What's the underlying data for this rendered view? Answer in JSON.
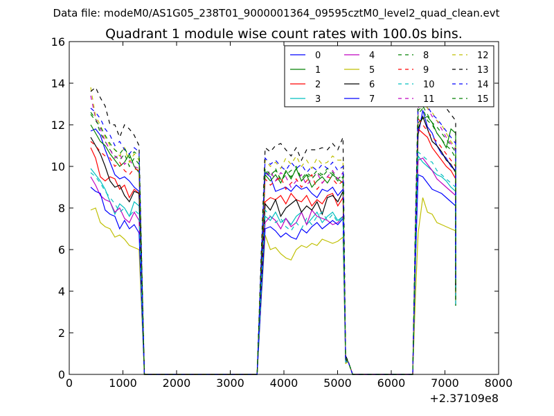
{
  "header": {
    "datafile": "Data file: modeM0/AS1G05_238T01_9000001364_09595cztM0_level2_quad_clean.evt"
  },
  "chart_data": {
    "type": "line",
    "title": "Quadrant 1 module wise count rates with 100.0s bins.",
    "xlabel": "",
    "ylabel": "",
    "x_offset_label": "+2.37109e8",
    "xlim": [
      0,
      8000
    ],
    "ylim": [
      0,
      16
    ],
    "xticks": [
      0,
      1000,
      2000,
      3000,
      4000,
      5000,
      6000,
      7000,
      8000
    ],
    "yticks": [
      0,
      2,
      4,
      6,
      8,
      10,
      12,
      14,
      16
    ],
    "grid": false,
    "legend_position": "top-right",
    "legend_ncol": 4,
    "segments": [
      {
        "x_start": 400,
        "x_end": 1300,
        "x_drop": 1400,
        "x_zero_start": 1400,
        "x_zero_end": 3500
      },
      {
        "x_start": 3650,
        "x_end": 5100,
        "x_rise": 3500
      },
      {
        "x_start": 6500,
        "x_end": 7200,
        "x_rise": 6400
      }
    ],
    "series": [
      {
        "name": "0",
        "color": "#0000ff",
        "dash": "solid",
        "seg1": [
          11.7,
          11.8,
          11.5,
          10.8,
          10.2,
          9.6,
          9.4,
          9.5,
          9.3,
          9.0,
          8.8
        ],
        "seg2": [
          9.7,
          9.5,
          8.8,
          8.9,
          9.0,
          8.8,
          9.1,
          8.9,
          9.0,
          8.7,
          8.5,
          8.9,
          8.8,
          9.0,
          8.6,
          8.9
        ],
        "seg3": [
          11.5,
          12.7,
          11.9,
          11.6,
          11.0,
          10.6,
          10.4,
          10.0,
          9.8
        ]
      },
      {
        "name": "1",
        "color": "#008000",
        "dash": "solid",
        "seg1": [
          12.0,
          11.6,
          11.2,
          11.0,
          10.6,
          10.3,
          10.0,
          10.2,
          10.6,
          10.0,
          9.7
        ],
        "seg2": [
          9.6,
          9.3,
          9.6,
          9.2,
          9.8,
          9.4,
          9.9,
          9.3,
          9.6,
          9.0,
          9.3,
          9.5,
          9.2,
          9.6,
          9.4,
          9.2
        ],
        "seg3": [
          12.1,
          12.3,
          12.4,
          12.1,
          11.6,
          11.3,
          10.9,
          11.8,
          11.6
        ]
      },
      {
        "name": "2",
        "color": "#ff0000",
        "dash": "solid",
        "seg1": [
          10.9,
          10.4,
          9.5,
          9.3,
          9.5,
          9.4,
          8.9,
          9.1,
          8.5,
          8.9,
          8.7
        ],
        "seg2": [
          8.3,
          8.5,
          8.4,
          8.6,
          8.2,
          8.7,
          8.4,
          8.3,
          8.6,
          8.1,
          8.4,
          8.2,
          8.6,
          8.7,
          8.1,
          8.5
        ],
        "seg3": [
          11.8,
          11.6,
          11.4,
          10.9,
          10.6,
          10.3,
          10.0,
          9.8,
          9.4
        ]
      },
      {
        "name": "3",
        "color": "#00bfbf",
        "dash": "solid",
        "seg1": [
          9.9,
          9.6,
          9.3,
          8.9,
          8.3,
          7.7,
          8.2,
          8.0,
          7.6,
          8.3,
          8.1
        ],
        "seg2": [
          7.6,
          7.4,
          7.8,
          7.3,
          7.5,
          7.2,
          7.6,
          7.8,
          7.2,
          7.5,
          7.8,
          7.3,
          7.6,
          7.8,
          7.4,
          7.6
        ],
        "seg3": [
          10.5,
          10.2,
          10.0,
          9.8,
          9.6,
          9.5,
          9.3,
          9.0,
          8.8
        ]
      },
      {
        "name": "4",
        "color": "#bf00bf",
        "dash": "solid",
        "seg1": [
          9.5,
          9.1,
          8.6,
          8.4,
          8.3,
          7.8,
          8.0,
          7.5,
          7.3,
          7.8,
          7.4
        ],
        "seg2": [
          7.3,
          7.6,
          7.4,
          7.0,
          7.5,
          7.1,
          7.3,
          7.8,
          7.2,
          7.9,
          7.6,
          7.5,
          7.4,
          7.2,
          7.3,
          7.6
        ],
        "seg3": [
          10.3,
          10.4,
          10.1,
          9.8,
          9.4,
          9.2,
          9.0,
          8.8,
          8.6
        ]
      },
      {
        "name": "5",
        "color": "#bfbf00",
        "dash": "solid",
        "seg1": [
          7.9,
          8.0,
          7.3,
          7.1,
          7.0,
          6.6,
          6.7,
          6.5,
          6.2,
          6.1,
          6.0
        ],
        "seg2": [
          6.7,
          6.0,
          6.1,
          5.8,
          5.6,
          5.5,
          6.0,
          6.2,
          6.1,
          6.3,
          6.2,
          6.5,
          6.4,
          6.3,
          6.4,
          6.6
        ],
        "seg3": [
          6.8,
          8.5,
          7.8,
          7.7,
          7.3,
          7.2,
          7.1,
          7.0,
          6.9
        ]
      },
      {
        "name": "6",
        "color": "#000000",
        "dash": "solid",
        "seg1": [
          11.4,
          11.0,
          10.6,
          10.0,
          9.3,
          9.0,
          9.1,
          8.6,
          8.3,
          8.8,
          8.7
        ],
        "seg2": [
          8.2,
          7.9,
          8.4,
          7.6,
          8.0,
          8.2,
          8.4,
          7.8,
          8.1,
          7.9,
          8.3,
          7.7,
          8.5,
          8.6,
          8.3,
          8.8
        ],
        "seg3": [
          11.8,
          12.4,
          11.8,
          11.2,
          11.0,
          10.7,
          10.3,
          10.1,
          9.7
        ]
      },
      {
        "name": "7",
        "color": "#0000ff",
        "dash": "solid",
        "seg1": [
          9.0,
          8.8,
          8.7,
          7.9,
          7.7,
          7.6,
          7.0,
          7.4,
          7.0,
          7.2,
          6.8
        ],
        "seg2": [
          7.0,
          7.1,
          6.9,
          6.6,
          6.8,
          6.6,
          6.5,
          7.0,
          6.8,
          7.1,
          7.3,
          7.0,
          7.2,
          7.4,
          7.2,
          7.5
        ],
        "seg3": [
          9.6,
          9.5,
          9.2,
          8.9,
          8.8,
          8.7,
          8.5,
          8.3,
          8.1
        ]
      },
      {
        "name": "8",
        "color": "#008000",
        "dash": "dash",
        "seg1": [
          12.6,
          12.3,
          11.6,
          11.2,
          10.8,
          10.5,
          10.3,
          10.6,
          10.0,
          10.4,
          10.1
        ],
        "seg2": [
          9.8,
          9.5,
          9.9,
          9.3,
          9.6,
          9.8,
          10.0,
          9.4,
          9.7,
          9.5,
          9.8,
          9.6,
          9.9,
          9.7,
          9.4,
          9.6
        ],
        "seg3": [
          12.5,
          12.8,
          12.2,
          12.0,
          11.6,
          11.3,
          11.0,
          10.8,
          10.4
        ]
      },
      {
        "name": "9",
        "color": "#ff0000",
        "dash": "dash",
        "seg1": [
          11.2,
          11.0,
          10.7,
          10.5,
          10.4,
          10.0,
          10.2,
          9.8,
          9.6,
          9.9,
          9.8
        ],
        "seg2": [
          9.4,
          9.1,
          9.3,
          9.5,
          8.9,
          9.2,
          9.4,
          9.0,
          9.3,
          9.6,
          8.9,
          9.2,
          9.5,
          9.4,
          9.1,
          9.3
        ],
        "seg3": [
          12.3,
          12.0,
          11.7,
          11.4,
          11.2,
          10.9,
          10.6,
          10.3,
          10.0
        ]
      },
      {
        "name": "10",
        "color": "#00bfbf",
        "dash": "dash",
        "seg1": [
          9.7,
          9.5,
          9.2,
          8.8,
          8.5,
          8.2,
          7.8,
          8.0,
          7.6,
          7.9,
          7.7
        ],
        "seg2": [
          7.9,
          7.6,
          7.3,
          7.5,
          7.1,
          6.9,
          7.3,
          7.0,
          7.5,
          7.2,
          7.6,
          7.8,
          7.4,
          7.7,
          7.3,
          7.6
        ],
        "seg3": [
          10.7,
          10.5,
          10.3,
          10.2,
          9.8,
          9.6,
          9.4,
          9.2,
          9.0
        ]
      },
      {
        "name": "11",
        "color": "#bf00bf",
        "dash": "dash",
        "seg1": [
          13.4,
          12.3,
          11.8,
          11.2,
          10.8,
          10.4,
          10.6,
          10.1,
          10.3,
          10.0,
          9.9
        ],
        "seg2": [
          9.5,
          9.8,
          9.3,
          9.7,
          9.5,
          9.0,
          9.3,
          9.6,
          9.1,
          9.4,
          9.7,
          9.2,
          9.5,
          9.8,
          9.4,
          9.7
        ],
        "seg3": [
          12.8,
          13.2,
          12.8,
          12.4,
          12.2,
          11.8,
          11.4,
          11.1,
          10.8
        ]
      },
      {
        "name": "12",
        "color": "#bfbf00",
        "dash": "dash",
        "seg1": [
          13.8,
          12.4,
          12.0,
          11.4,
          11.0,
          10.8,
          10.5,
          10.9,
          10.2,
          10.6,
          10.3
        ],
        "seg2": [
          10.3,
          10.0,
          10.2,
          9.9,
          10.4,
          10.1,
          10.5,
          10.0,
          10.3,
          9.9,
          10.4,
          10.1,
          10.2,
          10.5,
          10.3,
          10.3
        ],
        "seg3": [
          12.9,
          13.2,
          12.8,
          12.6,
          12.2,
          12.0,
          11.6,
          11.2,
          10.9
        ]
      },
      {
        "name": "13",
        "color": "#000000",
        "dash": "dash",
        "seg1": [
          13.6,
          13.8,
          13.3,
          12.9,
          12.0,
          12.0,
          11.4,
          12.0,
          11.8,
          11.5,
          11.0
        ],
        "seg2": [
          10.9,
          10.7,
          11.0,
          11.1,
          10.8,
          10.5,
          10.9,
          10.3,
          10.8,
          10.8,
          10.8,
          10.9,
          10.8,
          11.1,
          10.8,
          11.4
        ],
        "seg3": [
          13.4,
          13.9,
          13.6,
          13.4,
          13.2,
          13.3,
          12.8,
          12.5,
          12.2
        ]
      },
      {
        "name": "14",
        "color": "#0000ff",
        "dash": "dash",
        "seg1": [
          12.8,
          12.6,
          12.3,
          11.8,
          11.5,
          11.0,
          11.2,
          10.8,
          10.6,
          10.9,
          10.7
        ],
        "seg2": [
          10.4,
          10.1,
          10.3,
          10.0,
          9.8,
          10.2,
          9.9,
          10.1,
          9.7,
          10.0,
          9.8,
          10.1,
          9.9,
          10.2,
          9.8,
          10.0
        ],
        "seg3": [
          13.0,
          13.1,
          12.9,
          12.5,
          12.3,
          12.0,
          11.7,
          11.4,
          11.1
        ]
      },
      {
        "name": "15",
        "color": "#008000",
        "dash": "dash",
        "seg1": [
          12.5,
          12.2,
          11.9,
          11.5,
          11.1,
          10.8,
          10.6,
          10.9,
          10.4,
          10.7,
          10.5
        ],
        "seg2": [
          9.9,
          9.6,
          9.8,
          9.4,
          9.7,
          9.5,
          9.9,
          9.3,
          9.6,
          9.4,
          9.7,
          9.5,
          9.8,
          9.6,
          9.3,
          9.5
        ],
        "seg3": [
          12.7,
          12.9,
          12.5,
          12.1,
          11.9,
          11.6,
          11.3,
          11.0,
          10.7
        ]
      }
    ]
  }
}
